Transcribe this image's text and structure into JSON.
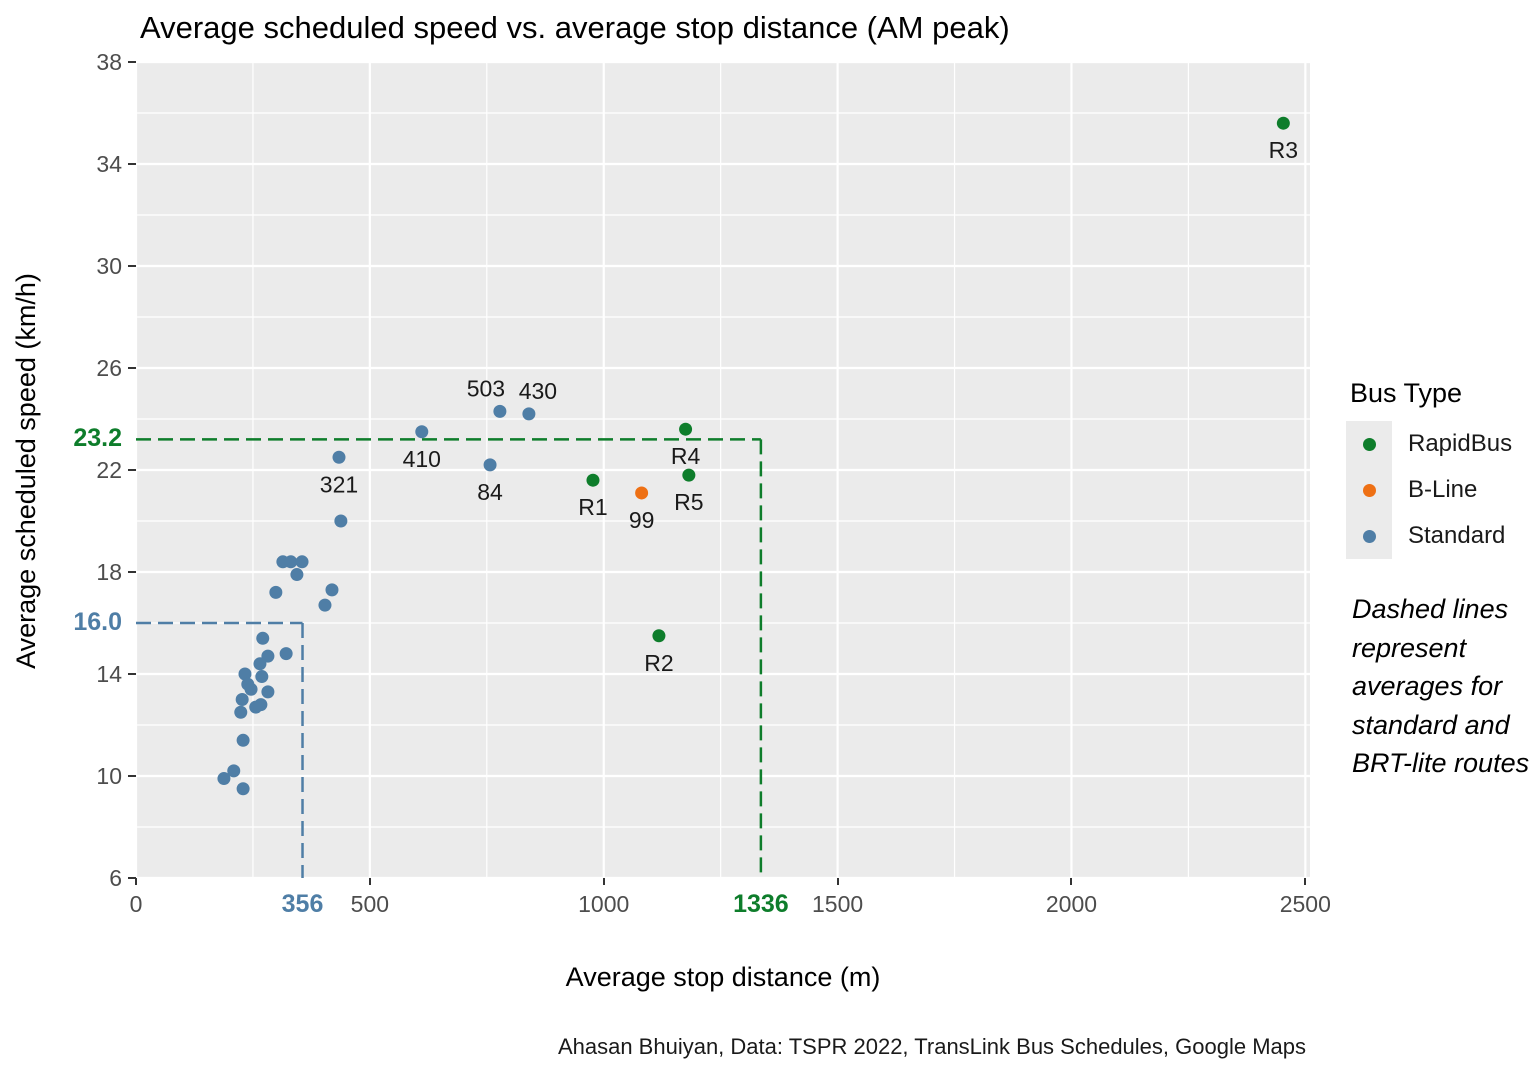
{
  "chart_data": {
    "type": "scatter",
    "title": "Average scheduled speed vs. average stop distance (AM peak)",
    "xlabel": "Average stop distance (m)",
    "ylabel": "Average scheduled speed (km/h)",
    "caption": "Ahasan Bhuiyan, Data: TSPR 2022, TransLink Bus Schedules, Google Maps",
    "note": "Dashed lines represent averages for standard and BRT-lite routes",
    "xlim": [
      0,
      2510
    ],
    "ylim": [
      6,
      38
    ],
    "x_ticks": [
      0,
      500,
      1000,
      1500,
      2000,
      2500
    ],
    "y_ticks": [
      6,
      10,
      14,
      18,
      22,
      26,
      30,
      34,
      38
    ],
    "x_minor_ticks": [
      250,
      750,
      1250,
      1750,
      2250
    ],
    "y_minor_ticks": [
      8,
      12,
      16,
      20,
      24,
      28,
      32,
      36
    ],
    "grid": "on",
    "panel_bg": "#EBEBEB",
    "grid_color": "#FFFFFF",
    "tick_label_color": "#4D4D4D",
    "legend": {
      "title": "Bus Type",
      "position": "right",
      "items": [
        {
          "label": "RapidBus",
          "color": "#0E7D2B"
        },
        {
          "label": "B-Line",
          "color": "#EE7014"
        },
        {
          "label": "Standard",
          "color": "#4F7EA6"
        }
      ]
    },
    "series": [
      {
        "name": "RapidBus",
        "color": "#0E7D2B",
        "points": [
          {
            "x": 977,
            "y": 21.6,
            "label": "R1",
            "label_pos": "below"
          },
          {
            "x": 1118,
            "y": 15.5,
            "label": "R2",
            "label_pos": "below"
          },
          {
            "x": 2453,
            "y": 35.6,
            "label": "R3",
            "label_pos": "below"
          },
          {
            "x": 1175,
            "y": 23.6,
            "label": "R4",
            "label_pos": "below"
          },
          {
            "x": 1182,
            "y": 21.8,
            "label": "R5",
            "label_pos": "below"
          }
        ]
      },
      {
        "name": "B-Line",
        "color": "#EE7014",
        "points": [
          {
            "x": 1081,
            "y": 21.1,
            "label": "99",
            "label_pos": "below"
          }
        ]
      },
      {
        "name": "Standard",
        "color": "#4F7EA6",
        "points": [
          {
            "x": 314,
            "y": 18.4
          },
          {
            "x": 331,
            "y": 18.4
          },
          {
            "x": 355,
            "y": 18.4
          },
          {
            "x": 344,
            "y": 17.9
          },
          {
            "x": 299,
            "y": 17.2
          },
          {
            "x": 419,
            "y": 17.3
          },
          {
            "x": 404,
            "y": 16.7
          },
          {
            "x": 271,
            "y": 15.4
          },
          {
            "x": 282,
            "y": 14.7
          },
          {
            "x": 321,
            "y": 14.8
          },
          {
            "x": 265,
            "y": 14.4
          },
          {
            "x": 233,
            "y": 14.0
          },
          {
            "x": 269,
            "y": 13.9
          },
          {
            "x": 239,
            "y": 13.6
          },
          {
            "x": 246,
            "y": 13.4
          },
          {
            "x": 282,
            "y": 13.3
          },
          {
            "x": 227,
            "y": 13.0
          },
          {
            "x": 267,
            "y": 12.8
          },
          {
            "x": 256,
            "y": 12.7
          },
          {
            "x": 224,
            "y": 12.5
          },
          {
            "x": 229,
            "y": 11.4
          },
          {
            "x": 209,
            "y": 10.2
          },
          {
            "x": 188,
            "y": 9.9
          },
          {
            "x": 229,
            "y": 9.5
          },
          {
            "x": 434,
            "y": 22.5,
            "label": "321",
            "label_pos": "below"
          },
          {
            "x": 438,
            "y": 20.0
          },
          {
            "x": 611,
            "y": 23.5,
            "label": "410",
            "label_pos": "below"
          },
          {
            "x": 757,
            "y": 22.2,
            "label": "84",
            "label_pos": "below"
          },
          {
            "x": 778,
            "y": 24.3,
            "label": "503",
            "label_pos": "above",
            "label_dx": -14
          },
          {
            "x": 840,
            "y": 24.2,
            "label": "430",
            "label_pos": "above",
            "label_dx": 9
          }
        ]
      }
    ],
    "avg_lines": [
      {
        "group": "standard",
        "color": "#4F7EA6",
        "x": 356,
        "y": 16.0,
        "x_label": "356",
        "y_label": "16.0"
      },
      {
        "group": "BRT-lite",
        "color": "#0E7D2B",
        "x": 1336,
        "y": 23.2,
        "x_label": "1336",
        "y_label": "23.2"
      }
    ]
  }
}
